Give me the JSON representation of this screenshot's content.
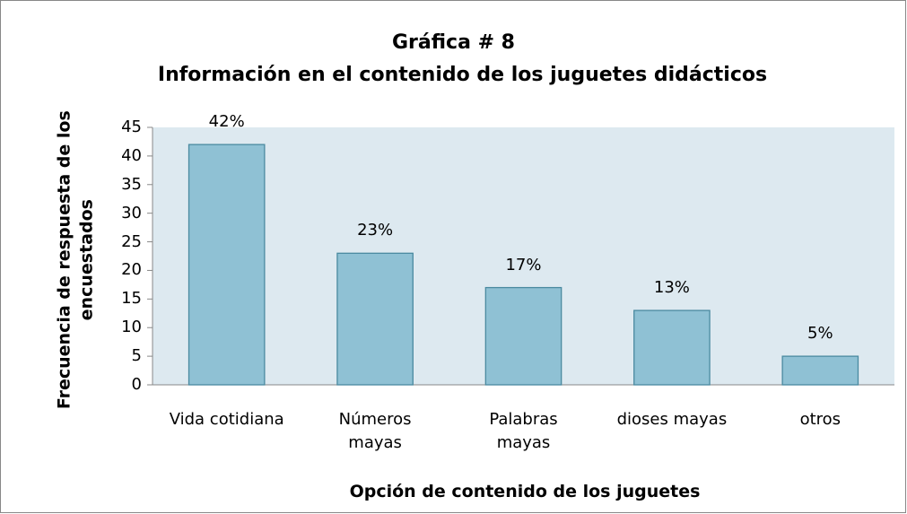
{
  "chart_data": {
    "type": "bar",
    "title": "Gráfica # 8",
    "subtitle": "Información en el contenido de los juguetes didácticos",
    "xlabel": "Opción de contenido de los juguetes",
    "ylabel": "Frecuencia de respuesta de los\nencuestados",
    "categories": [
      "Vida cotidiana",
      "Números\nmayas",
      "Palabras\nmayas",
      "dioses mayas",
      "otros"
    ],
    "values": [
      42,
      23,
      17,
      13,
      5
    ],
    "value_labels": [
      "42%",
      "23%",
      "17%",
      "13%",
      "5%"
    ],
    "color": "#8fc1d4",
    "ylim": [
      0,
      45
    ],
    "yticks": [
      0,
      5,
      10,
      15,
      20,
      25,
      30,
      35,
      40,
      45
    ]
  }
}
